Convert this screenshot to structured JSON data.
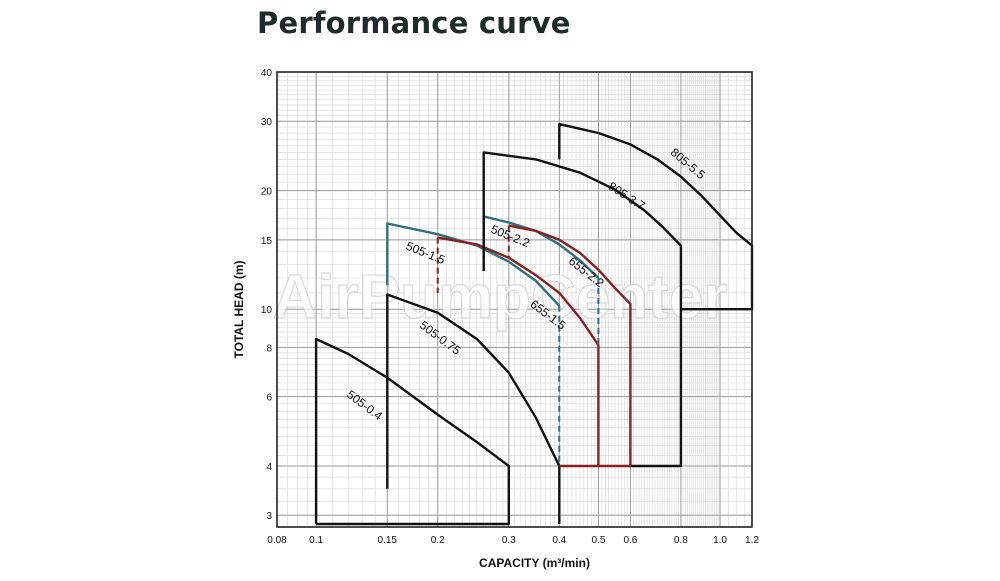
{
  "title": "Performance curve",
  "watermark": "AirPumpCenter",
  "chart_data": {
    "type": "line",
    "title": "Performance curve",
    "xlabel": "CAPACITY (m³/min)",
    "ylabel": "TOTAL HEAD (m)",
    "x_scale": "log",
    "y_scale": "log",
    "xlim": [
      0.08,
      1.2
    ],
    "ylim": [
      2.8,
      40
    ],
    "x_ticks": [
      0.08,
      0.1,
      0.15,
      0.2,
      0.3,
      0.4,
      0.5,
      0.6,
      0.8,
      1.0,
      1.2
    ],
    "x_tick_labels": [
      "0.08",
      "0.1",
      "0.15",
      "0.2",
      "0.3",
      "0.4",
      "0.5",
      "0.6",
      "0.8",
      "1.0",
      "1.2"
    ],
    "y_ticks": [
      3,
      4,
      6,
      8,
      10,
      15,
      20,
      30,
      40
    ],
    "y_tick_labels": [
      "3",
      "4",
      "6",
      "8",
      "10",
      "15",
      "20",
      "30",
      "40"
    ],
    "grid": true,
    "series": [
      {
        "name": "505-0.4",
        "color": "#111111",
        "dashed": false,
        "x": [
          0.1,
          0.1,
          0.12,
          0.15,
          0.2,
          0.25,
          0.3,
          0.3,
          0.1
        ],
        "y": [
          2.85,
          8.4,
          7.7,
          6.7,
          5.4,
          4.6,
          4.0,
          2.85,
          2.85
        ]
      },
      {
        "name": "505-0.75",
        "color": "#111111",
        "dashed": false,
        "x": [
          0.15,
          0.15,
          0.2,
          0.25,
          0.3,
          0.35,
          0.4,
          0.4
        ],
        "y": [
          3.5,
          10.9,
          9.8,
          8.4,
          6.9,
          5.3,
          4.0,
          2.85
        ]
      },
      {
        "name": "505-1.5",
        "color": "#2e6f7e",
        "dashed": false,
        "x": [
          0.15,
          0.15,
          0.2,
          0.25,
          0.3,
          0.35,
          0.4
        ],
        "y": [
          11.5,
          16.5,
          15.5,
          14.5,
          13.2,
          11.8,
          10.2
        ]
      },
      {
        "name": "505-1.5 end",
        "color": "#2e6f7e",
        "dashed": true,
        "x": [
          0.4,
          0.4
        ],
        "y": [
          10.2,
          4.0
        ]
      },
      {
        "name": "505-2.2",
        "color": "#8b1f1f",
        "dashed": false,
        "x": [
          0.2,
          0.25,
          0.3,
          0.35,
          0.4,
          0.45,
          0.5,
          0.5,
          0.4
        ],
        "y": [
          15.2,
          14.6,
          13.5,
          12.2,
          11.0,
          9.5,
          8.1,
          4.0,
          4.0
        ]
      },
      {
        "name": "505-2.2 start",
        "color": "#8b1f1f",
        "dashed": true,
        "x": [
          0.2,
          0.2
        ],
        "y": [
          15.2,
          11.0
        ]
      },
      {
        "name": "655-2.2",
        "color": "#2e6f7e",
        "dashed": false,
        "x": [
          0.26,
          0.26,
          0.3,
          0.35,
          0.4,
          0.45,
          0.5
        ],
        "y": [
          13.5,
          17.2,
          16.6,
          15.8,
          14.6,
          13.3,
          12.0
        ]
      },
      {
        "name": "655-2.2 end",
        "color": "#2e6f7e",
        "dashed": true,
        "x": [
          0.5,
          0.5
        ],
        "y": [
          12.0,
          8.0
        ]
      },
      {
        "name": "655-1.5",
        "color": "#8b1f1f",
        "dashed": false,
        "x": [
          0.3,
          0.35,
          0.4,
          0.45,
          0.5,
          0.55,
          0.6,
          0.6,
          0.5
        ],
        "y": [
          16.3,
          15.8,
          15.0,
          13.9,
          12.6,
          11.3,
          10.3,
          4.0,
          4.0
        ]
      },
      {
        "name": "655-1.5 start",
        "color": "#8b1f1f",
        "dashed": true,
        "x": [
          0.3,
          0.3
        ],
        "y": [
          16.3,
          13.5
        ]
      },
      {
        "name": "805-3.7",
        "color": "#111111",
        "dashed": false,
        "x": [
          0.26,
          0.26,
          0.35,
          0.45,
          0.55,
          0.65,
          0.72,
          0.8,
          0.8,
          0.6
        ],
        "y": [
          12.5,
          25.0,
          24.0,
          22.2,
          20.1,
          17.8,
          16.2,
          14.5,
          4.0,
          4.0
        ]
      },
      {
        "name": "805-5.5",
        "color": "#111111",
        "dashed": false,
        "x": [
          0.4,
          0.4,
          0.5,
          0.6,
          0.7,
          0.8,
          0.9,
          1.0,
          1.1,
          1.2,
          1.2,
          0.8
        ],
        "y": [
          24.0,
          29.5,
          28.0,
          26.2,
          24.0,
          21.7,
          19.4,
          17.3,
          15.6,
          14.5,
          10.0,
          10.0
        ]
      }
    ],
    "annotations": [
      {
        "text": "505-0.4",
        "x": 0.13,
        "y": 5.6,
        "angle": 37
      },
      {
        "text": "505-0.75",
        "x": 0.2,
        "y": 8.3,
        "angle": 37
      },
      {
        "text": "505-1.5",
        "x": 0.185,
        "y": 13.6,
        "angle": 22
      },
      {
        "text": "505-2.2",
        "x": 0.3,
        "y": 15.0,
        "angle": 22
      },
      {
        "text": "655-1.5",
        "x": 0.37,
        "y": 9.5,
        "angle": 37
      },
      {
        "text": "655-2.2",
        "x": 0.46,
        "y": 12.2,
        "angle": 38
      },
      {
        "text": "805-3.7",
        "x": 0.58,
        "y": 19.0,
        "angle": 33
      },
      {
        "text": "805-5.5",
        "x": 0.82,
        "y": 23.0,
        "angle": 40
      }
    ]
  }
}
